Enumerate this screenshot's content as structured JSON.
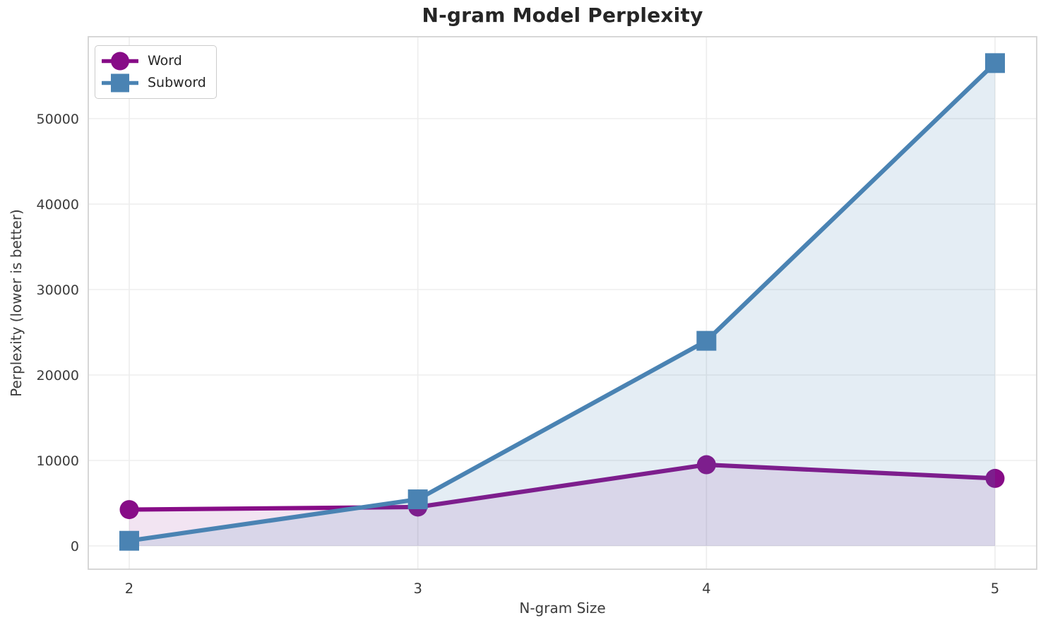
{
  "page": {
    "title": "N-gram Model Perplexity"
  },
  "chart_data": {
    "type": "line",
    "title": "N-gram Model Perplexity",
    "xlabel": "N-gram Size",
    "ylabel": "Perplexity (lower is better)",
    "x": [
      2,
      3,
      4,
      5
    ],
    "x_tick_labels": [
      "2",
      "3",
      "4",
      "5"
    ],
    "y_ticks": [
      0,
      10000,
      20000,
      30000,
      40000,
      50000
    ],
    "y_tick_labels": [
      "0",
      "10000",
      "20000",
      "30000",
      "40000",
      "50000"
    ],
    "ylim": [
      -2700,
      59600
    ],
    "grid": true,
    "legend_position": "upper left",
    "series": [
      {
        "name": "Word",
        "marker": "circle",
        "color": "#870C87",
        "fill_opacity": 0.11,
        "values": [
          4250,
          4550,
          9500,
          7900
        ]
      },
      {
        "name": "Subword",
        "marker": "square",
        "color": "#4A83B3",
        "fill_opacity": 0.15,
        "values": [
          600,
          5450,
          24000,
          56500
        ]
      }
    ]
  },
  "colors": {
    "background": "#FFFFFF",
    "grid": "#EDEDED",
    "spine": "#D3D3D3",
    "tick_text": "#3C3C3C",
    "title_text": "#262626",
    "legend_border": "#CCCCCC",
    "legend_background": "#FFFFFF"
  }
}
